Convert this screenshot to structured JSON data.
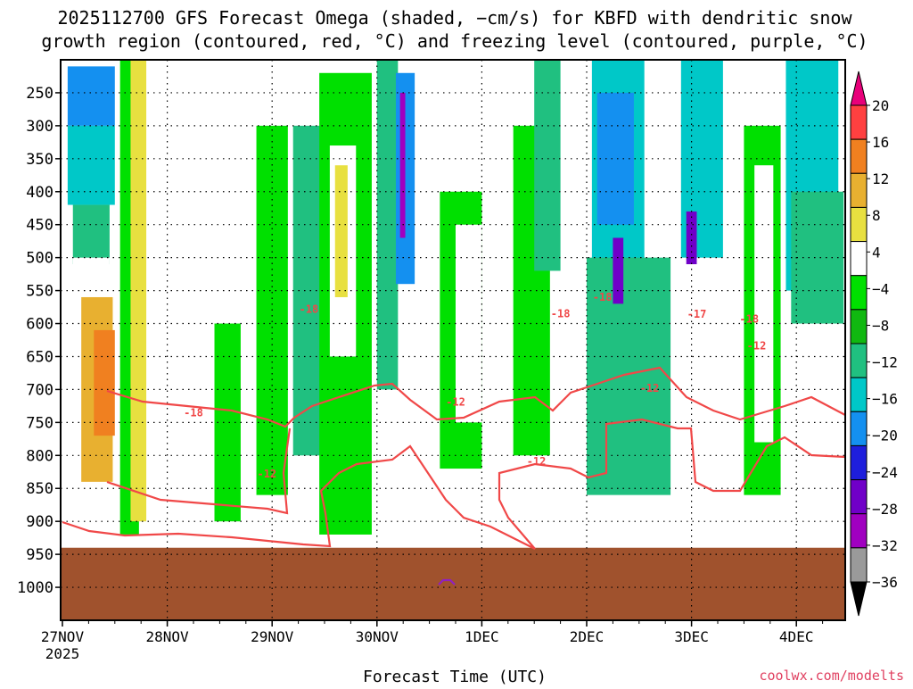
{
  "title_line1": "2025112700 GFS Forecast Omega (shaded, −cm/s) for KBFD with dendritic snow",
  "title_line2": "growth region (contoured, red, °C) and freezing level (contoured, purple, °C)",
  "xlabel": "Forecast Time (UTC)",
  "watermark": "coolwx.com/modelts",
  "year_label": "2025",
  "colors": {
    "contour_red": "#f04848",
    "contour_purple": "#9020c0",
    "terrain": "#a0522d",
    "grid": "#000000"
  },
  "chart_data": {
    "type": "heatmap",
    "x": [
      "27NOV",
      "28NOV",
      "29NOV",
      "30NOV",
      "1DEC",
      "2DEC",
      "3DEC",
      "4DEC"
    ],
    "xlim_days": [
      0,
      7.45
    ],
    "y_ticks": [
      250,
      300,
      350,
      400,
      450,
      500,
      550,
      600,
      650,
      700,
      750,
      800,
      850,
      900,
      950,
      1000
    ],
    "ylim_hpa": [
      200,
      1050
    ],
    "surface_pressure_hpa": 940,
    "grid": true,
    "colorbar": {
      "labels": [
        "20",
        "16",
        "12",
        "8",
        "4",
        "−4",
        "−8",
        "−12",
        "−16",
        "−20",
        "−24",
        "−28",
        "−32",
        "−36"
      ],
      "bins": [
        {
          "color": "#e8e8e8"
        },
        {
          "color": "#9a9a9a"
        },
        {
          "color": "#a000c0"
        },
        {
          "color": "#7000c8"
        },
        {
          "color": "#1e1edc"
        },
        {
          "color": "#1490f0"
        },
        {
          "color": "#00c8c8"
        },
        {
          "color": "#20c080"
        },
        {
          "color": "#10b810"
        },
        {
          "color": "#00e000"
        },
        {
          "color": "#ffffff"
        },
        {
          "color": "#e8e040"
        },
        {
          "color": "#e8b030"
        },
        {
          "color": "#f08020"
        },
        {
          "color": "#ff4040"
        },
        {
          "color": "#e8007a"
        }
      ]
    },
    "contour_labels": [
      {
        "text": "-18",
        "day": 2.35,
        "hpa": 578
      },
      {
        "text": "-18",
        "day": 4.75,
        "hpa": 585
      },
      {
        "text": "-18",
        "day": 5.15,
        "hpa": 560
      },
      {
        "text": "-18",
        "day": 1.25,
        "hpa": 735
      },
      {
        "text": "-18",
        "day": 6.55,
        "hpa": 593
      },
      {
        "text": "-12",
        "day": 1.95,
        "hpa": 828
      },
      {
        "text": "-12",
        "day": 3.75,
        "hpa": 719
      },
      {
        "text": "-12",
        "day": 4.52,
        "hpa": 809
      },
      {
        "text": "-12",
        "day": 5.6,
        "hpa": 698
      },
      {
        "text": "-12",
        "day": 6.62,
        "hpa": 634
      },
      {
        "text": "-17",
        "day": 6.05,
        "hpa": 586
      }
    ],
    "omega_cells": [
      {
        "day": 0.05,
        "hpa": 210,
        "w": 0.45,
        "h": 90,
        "v": -16
      },
      {
        "day": 0.05,
        "hpa": 300,
        "w": 0.45,
        "h": 120,
        "v": -12
      },
      {
        "day": 0.1,
        "hpa": 420,
        "w": 0.35,
        "h": 90,
        "v": -8
      },
      {
        "day": 0.1,
        "hpa": 500,
        "w": 0.35,
        "h": 380,
        "v": 8
      },
      {
        "day": 0.18,
        "hpa": 560,
        "w": 0.3,
        "h": 280,
        "v": 16
      },
      {
        "day": 0.3,
        "hpa": 610,
        "w": 0.2,
        "h": 160,
        "v": 20
      },
      {
        "day": 0.55,
        "hpa": 200,
        "w": 0.18,
        "h": 720,
        "v": 4
      },
      {
        "day": 0.65,
        "hpa": 200,
        "w": 0.15,
        "h": 700,
        "v": 12
      },
      {
        "day": 1.45,
        "hpa": 600,
        "w": 0.25,
        "h": 300,
        "v": 4
      },
      {
        "day": 1.85,
        "hpa": 300,
        "w": 0.3,
        "h": 560,
        "v": 4
      },
      {
        "day": 2.2,
        "hpa": 300,
        "w": 0.4,
        "h": 500,
        "v": -8
      },
      {
        "day": 2.45,
        "hpa": 220,
        "w": 0.5,
        "h": 700,
        "v": 4
      },
      {
        "day": 2.55,
        "hpa": 330,
        "w": 0.25,
        "h": 320,
        "v": 8
      },
      {
        "day": 2.6,
        "hpa": 360,
        "w": 0.12,
        "h": 200,
        "v": 12
      },
      {
        "day": 3.0,
        "hpa": 200,
        "w": 0.2,
        "h": 500,
        "v": -8
      },
      {
        "day": 3.18,
        "hpa": 220,
        "w": 0.18,
        "h": 320,
        "v": -16
      },
      {
        "day": 3.22,
        "hpa": 250,
        "w": 0.05,
        "h": 220,
        "v": -28
      },
      {
        "day": 3.6,
        "hpa": 400,
        "w": 0.4,
        "h": 420,
        "v": 4
      },
      {
        "day": 3.75,
        "hpa": 450,
        "w": 0.25,
        "h": 300,
        "v": 8
      },
      {
        "day": 4.3,
        "hpa": 300,
        "w": 0.35,
        "h": 500,
        "v": 4
      },
      {
        "day": 4.5,
        "hpa": 200,
        "w": 0.25,
        "h": 320,
        "v": -8
      },
      {
        "day": 5.05,
        "hpa": 200,
        "w": 0.5,
        "h": 380,
        "v": -12
      },
      {
        "day": 5.1,
        "hpa": 250,
        "w": 0.35,
        "h": 200,
        "v": -16
      },
      {
        "day": 5.0,
        "hpa": 500,
        "w": 0.8,
        "h": 360,
        "v": -8
      },
      {
        "day": 5.25,
        "hpa": 470,
        "w": 0.1,
        "h": 100,
        "v": -24
      },
      {
        "day": 5.9,
        "hpa": 200,
        "w": 0.4,
        "h": 300,
        "v": -12
      },
      {
        "day": 5.95,
        "hpa": 430,
        "w": 0.1,
        "h": 80,
        "v": -24
      },
      {
        "day": 6.5,
        "hpa": 300,
        "w": 0.35,
        "h": 560,
        "v": 4
      },
      {
        "day": 6.6,
        "hpa": 360,
        "w": 0.18,
        "h": 420,
        "v": 8
      },
      {
        "day": 6.9,
        "hpa": 200,
        "w": 0.5,
        "h": 350,
        "v": -12
      },
      {
        "day": 6.95,
        "hpa": 400,
        "w": 0.5,
        "h": 200,
        "v": -8
      }
    ]
  }
}
